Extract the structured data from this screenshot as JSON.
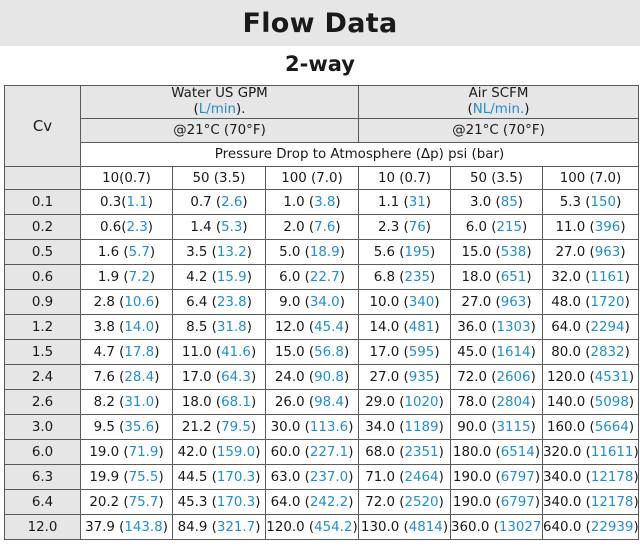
{
  "title": "Flow Data",
  "subtitle": "2-way",
  "header": {
    "cv": "Cv",
    "water": {
      "line1": "Water US GPM",
      "paren_open": "(",
      "unit": "L/min",
      "paren_close": ").",
      "temp": "@21°C (70°F)"
    },
    "air": {
      "line1": "Air SCFM",
      "paren_open": "(",
      "unit": "NL/min.",
      "paren_close": ")",
      "temp": "@21°C (70°F)"
    },
    "pressure": "Pressure Drop to Atmosphere (Δp) psi (bar)",
    "columns": [
      "10(0.7)",
      "50 (3.5)",
      "100 (7.0)",
      "10 (0.7)",
      "50 (3.5)",
      "100 (7.0)"
    ]
  },
  "rows": [
    {
      "cv": "0.1",
      "cells": [
        [
          "0.3(",
          "1.1",
          ")"
        ],
        [
          "0.7 (",
          "2.6",
          ")"
        ],
        [
          "1.0 (",
          "3.8",
          ")"
        ],
        [
          "1.1 (",
          "31",
          ")"
        ],
        [
          "3.0 (",
          "85",
          ")"
        ],
        [
          "5.3 (",
          "150",
          ")"
        ]
      ]
    },
    {
      "cv": "0.2",
      "cells": [
        [
          "0.6(",
          "2.3",
          ")"
        ],
        [
          "1.4 (",
          "5.3",
          ")"
        ],
        [
          "2.0 (",
          "7.6",
          ")"
        ],
        [
          "2.3 (",
          "76",
          ")"
        ],
        [
          "6.0 (",
          "215",
          ")"
        ],
        [
          "11.0 (",
          "396",
          ")"
        ]
      ]
    },
    {
      "cv": "0.5",
      "cells": [
        [
          "1.6 (",
          "5.7",
          ")"
        ],
        [
          "3.5 (",
          "13.2",
          ")"
        ],
        [
          "5.0 (",
          "18.9",
          ")"
        ],
        [
          "5.6 (",
          "195",
          ")"
        ],
        [
          "15.0 (",
          "538",
          ")"
        ],
        [
          "27.0 (",
          "963",
          ")"
        ]
      ]
    },
    {
      "cv": "0.6",
      "cells": [
        [
          "1.9 (",
          "7.2",
          ")"
        ],
        [
          "4.2 (",
          "15.9",
          ")"
        ],
        [
          "6.0 (",
          "22.7",
          ")"
        ],
        [
          "6.8 (",
          "235",
          ")"
        ],
        [
          "18.0 (",
          "651",
          ")"
        ],
        [
          "32.0 (",
          "1161",
          ")"
        ]
      ]
    },
    {
      "cv": "0.9",
      "cells": [
        [
          "2.8 (",
          "10.6",
          ")"
        ],
        [
          "6.4 (",
          "23.8",
          ")"
        ],
        [
          "9.0 (",
          "34.0",
          ")"
        ],
        [
          "10.0 (",
          "340",
          ")"
        ],
        [
          "27.0 (",
          "963",
          ")"
        ],
        [
          "48.0 (",
          "1720",
          ")"
        ]
      ]
    },
    {
      "cv": "1.2",
      "cells": [
        [
          "3.8 (",
          "14.0",
          ")"
        ],
        [
          "8.5 (",
          "31.8",
          ")"
        ],
        [
          "12.0 (",
          "45.4",
          ")"
        ],
        [
          "14.0 (",
          "481",
          ")"
        ],
        [
          "36.0 (",
          "1303",
          ")"
        ],
        [
          "64.0 (",
          "2294",
          ")"
        ]
      ]
    },
    {
      "cv": "1.5",
      "cells": [
        [
          "4.7 (",
          "17.8",
          ")"
        ],
        [
          "11.0 (",
          "41.6",
          ")"
        ],
        [
          "15.0 (",
          "56.8",
          ")"
        ],
        [
          "17.0 (",
          "595",
          ")"
        ],
        [
          "45.0 (",
          "1614",
          ")"
        ],
        [
          "80.0 (",
          "2832",
          ")"
        ]
      ]
    },
    {
      "cv": "2.4",
      "cells": [
        [
          "7.6 (",
          "28.4",
          ")"
        ],
        [
          "17.0 (",
          "64.3",
          ")"
        ],
        [
          "24.0 (",
          "90.8",
          ")"
        ],
        [
          "27.0 (",
          "935",
          ")"
        ],
        [
          "72.0 (",
          "2606",
          ")"
        ],
        [
          "120.0 (",
          "4531",
          ")"
        ]
      ]
    },
    {
      "cv": "2.6",
      "cells": [
        [
          "8.2 (",
          "31.0",
          ")"
        ],
        [
          "18.0 (",
          "68.1",
          ")"
        ],
        [
          "26.0 (",
          "98.4",
          ")"
        ],
        [
          "29.0 (",
          "1020",
          ")"
        ],
        [
          "78.0 (",
          "2804",
          ")"
        ],
        [
          "140.0 (",
          "5098",
          ")"
        ]
      ]
    },
    {
      "cv": "3.0",
      "cells": [
        [
          "9.5 (",
          "35.6",
          ")"
        ],
        [
          "21.2 (",
          "79.5",
          ")"
        ],
        [
          "30.0 (",
          "113.6",
          ")"
        ],
        [
          "34.0 (",
          "1189",
          ")"
        ],
        [
          "90.0 (",
          "3115",
          ")"
        ],
        [
          "160.0 (",
          "5664",
          ")"
        ]
      ]
    },
    {
      "cv": "6.0",
      "cells": [
        [
          "19.0 (",
          "71.9",
          ")"
        ],
        [
          "42.0 (",
          "159.0",
          ")"
        ],
        [
          "60.0 (",
          "227.1",
          ")"
        ],
        [
          "68.0 (",
          "2351",
          ")"
        ],
        [
          "180.0 (",
          "6514",
          ")"
        ],
        [
          "320.0 (",
          "11611",
          ")"
        ]
      ]
    },
    {
      "cv": "6.3",
      "cells": [
        [
          "19.9 (",
          "75.5",
          ")"
        ],
        [
          "44.5 (",
          "170.3",
          ")"
        ],
        [
          "63.0 (",
          "237.0",
          ")"
        ],
        [
          "71.0 (",
          "2464",
          ")"
        ],
        [
          "190.0 (",
          "6797",
          ")"
        ],
        [
          "340.0 (",
          "12178",
          ")"
        ]
      ]
    },
    {
      "cv": "6.4",
      "cells": [
        [
          "20.2 (",
          "75.7",
          ")"
        ],
        [
          "45.3 (",
          "170.3",
          ")"
        ],
        [
          "64.0 (",
          "242.2",
          ")"
        ],
        [
          "72.0 (",
          "2520",
          ")"
        ],
        [
          "190.0 (",
          "6797",
          ")"
        ],
        [
          "340.0 (",
          "12178",
          ")"
        ]
      ]
    },
    {
      "cv": "12.0",
      "cells": [
        [
          "37.9 (",
          "143.8",
          ")"
        ],
        [
          "84.9 (",
          "321.7",
          ")"
        ],
        [
          "120.0 (",
          "454.2",
          ")"
        ],
        [
          "130.0 (",
          "4814",
          ")"
        ],
        [
          "360.0 (",
          "13027",
          ")"
        ],
        [
          "640.0 (",
          "22939",
          ")"
        ]
      ]
    }
  ],
  "colors": {
    "accent_blue": "#1f8fce",
    "header_gray": "#e6e6e6",
    "grid": "#5a5a5a"
  }
}
